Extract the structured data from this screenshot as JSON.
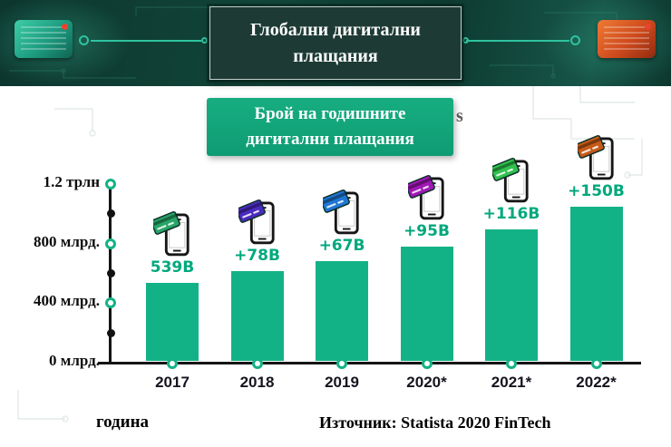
{
  "banner": {
    "title_line1": "Глобални дигитални",
    "title_line2": "плащания"
  },
  "subtitle": {
    "line1": "Брой на годишните",
    "line2": "дигитални плащания",
    "stray_letter": "s"
  },
  "chart_data": {
    "type": "bar",
    "title": "Брой на годишните дигитални плащания",
    "categories": [
      "2017",
      "2018",
      "2019",
      "2020*",
      "2021*",
      "2022*"
    ],
    "values": [
      539,
      617,
      684,
      779,
      895,
      1045
    ],
    "bar_labels": [
      "539B",
      "+78B",
      "+67B",
      "+95B",
      "+116B",
      "+150B"
    ],
    "yticks": [
      {
        "value": 1200,
        "label": "1.2 трлн"
      },
      {
        "value": 800,
        "label": "800 млрд."
      },
      {
        "value": 400,
        "label": "400 млрд."
      },
      {
        "value": 0,
        "label": "0 млрд."
      }
    ],
    "ylim": [
      0,
      1200
    ],
    "xlabel": "година",
    "bar_color": "#13b286",
    "label_color": "#00a87d",
    "accent_color": "#2fc3a0",
    "phone_card_colors": [
      "#27a567",
      "#4a2bbf",
      "#1f77d4",
      "#a018b5",
      "#2fc24d",
      "#c65a17"
    ]
  },
  "footer": {
    "source": "Източник: Statista 2020 FinTech"
  }
}
